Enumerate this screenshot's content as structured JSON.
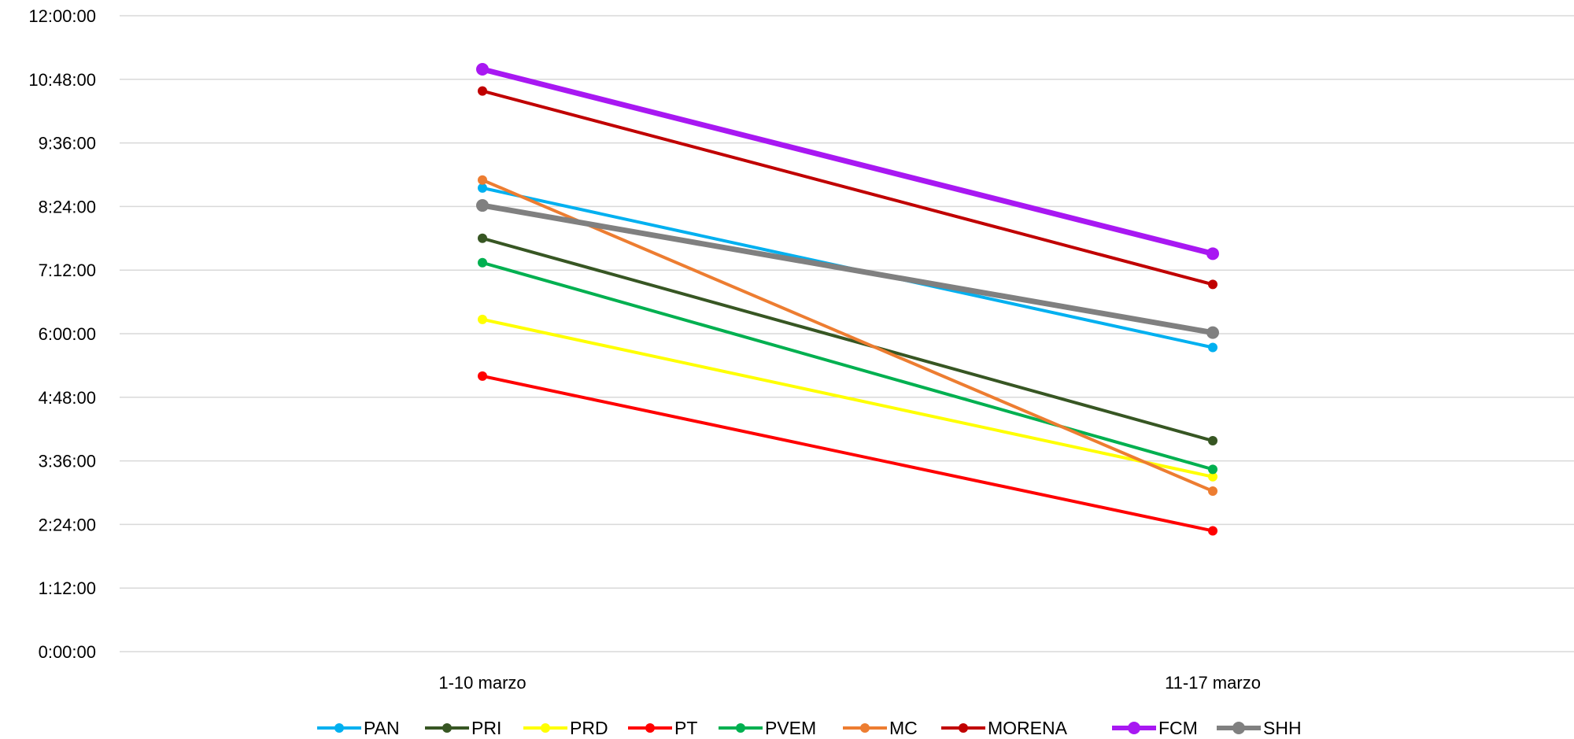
{
  "chart_data": {
    "type": "line",
    "title": "",
    "xlabel": "",
    "ylabel": "",
    "categories": [
      "1-10 marzo",
      "11-17 marzo"
    ],
    "y_unit": "hours (displayed as h:mm:ss)",
    "ylim": [
      0,
      12
    ],
    "y_ticks": [
      "0:00:00",
      "1:12:00",
      "2:24:00",
      "3:36:00",
      "4:48:00",
      "6:00:00",
      "7:12:00",
      "8:24:00",
      "9:36:00",
      "10:48:00",
      "12:00:00"
    ],
    "grid": true,
    "legend_position": "bottom",
    "series": [
      {
        "name": "PAN",
        "color": "#00B0F0",
        "values": [
          8.75,
          5.74
        ],
        "width": 4
      },
      {
        "name": "PRI",
        "color": "#375623",
        "values": [
          7.8,
          3.98
        ],
        "width": 4
      },
      {
        "name": "PRD",
        "color": "#FFFF00",
        "values": [
          6.27,
          3.3
        ],
        "width": 4
      },
      {
        "name": "PT",
        "color": "#FF0000",
        "values": [
          5.2,
          2.28
        ],
        "width": 4
      },
      {
        "name": "PVEM",
        "color": "#00B050",
        "values": [
          7.34,
          3.44
        ],
        "width": 4
      },
      {
        "name": "MC",
        "color": "#ED7D31",
        "values": [
          8.9,
          3.03
        ],
        "width": 4
      },
      {
        "name": "MORENA",
        "color": "#C00000",
        "values": [
          10.58,
          6.93
        ],
        "width": 4
      },
      {
        "name": "FCM",
        "color": "#A818F2",
        "values": [
          10.99,
          7.51
        ],
        "width": 7
      },
      {
        "name": "SHH",
        "color": "#808080",
        "values": [
          8.42,
          6.02
        ],
        "width": 7
      }
    ]
  }
}
